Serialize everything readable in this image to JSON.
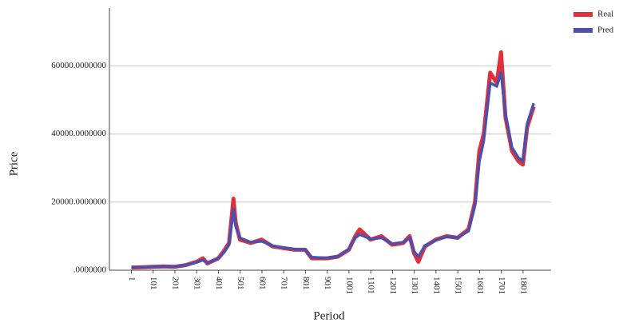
{
  "chart_data": {
    "type": "line",
    "x_label": "Period",
    "y_label": "Price",
    "x": [
      1,
      50,
      100,
      150,
      200,
      250,
      300,
      330,
      350,
      400,
      430,
      450,
      470,
      480,
      500,
      550,
      600,
      650,
      700,
      750,
      800,
      830,
      900,
      950,
      1000,
      1030,
      1050,
      1100,
      1150,
      1200,
      1250,
      1280,
      1300,
      1320,
      1350,
      1400,
      1450,
      1500,
      1550,
      1580,
      1600,
      1620,
      1650,
      1680,
      1700,
      1720,
      1750,
      1780,
      1800,
      1820,
      1850
    ],
    "series": [
      {
        "name": "Real",
        "color": "#e0303a",
        "values": [
          800,
          900,
          1000,
          1100,
          1000,
          1500,
          2500,
          3500,
          2000,
          3500,
          6000,
          8000,
          21000,
          14000,
          9000,
          8000,
          9000,
          7000,
          6500,
          6000,
          6000,
          3500,
          3500,
          4000,
          6000,
          10000,
          12000,
          9000,
          10000,
          7500,
          8000,
          10000,
          5000,
          2500,
          7000,
          9000,
          10000,
          9500,
          12000,
          20000,
          35000,
          40000,
          58000,
          55000,
          64000,
          45000,
          35000,
          32000,
          31000,
          42000,
          48000
        ]
      },
      {
        "name": "Pred",
        "color": "#4a4fb0",
        "values": [
          800,
          900,
          1000,
          1100,
          1050,
          1500,
          2300,
          3000,
          2200,
          3300,
          5500,
          7500,
          18000,
          13000,
          9500,
          8200,
          8500,
          7200,
          6600,
          6200,
          6000,
          3800,
          3600,
          4100,
          6200,
          9500,
          10500,
          9200,
          9500,
          7800,
          8200,
          9500,
          5500,
          4000,
          7200,
          8800,
          9800,
          9600,
          11500,
          19000,
          32000,
          38000,
          55000,
          54000,
          58000,
          46000,
          36000,
          33000,
          32000,
          43000,
          49000
        ]
      }
    ],
    "xlim": [
      -100,
      1930
    ],
    "xticks": [
      1,
      101,
      201,
      301,
      401,
      501,
      601,
      701,
      801,
      901,
      1001,
      1101,
      1201,
      1301,
      1401,
      1501,
      1601,
      1701,
      1801
    ],
    "ylim": [
      0,
      77000
    ],
    "yticks": [
      {
        "value": 0,
        "label": ".0000000"
      },
      {
        "value": 20000,
        "label": "20000.0000000"
      },
      {
        "value": 40000,
        "label": "40000.0000000"
      },
      {
        "value": 60000,
        "label": "60000.0000000"
      }
    ],
    "grid": true,
    "legend": "top-right"
  }
}
